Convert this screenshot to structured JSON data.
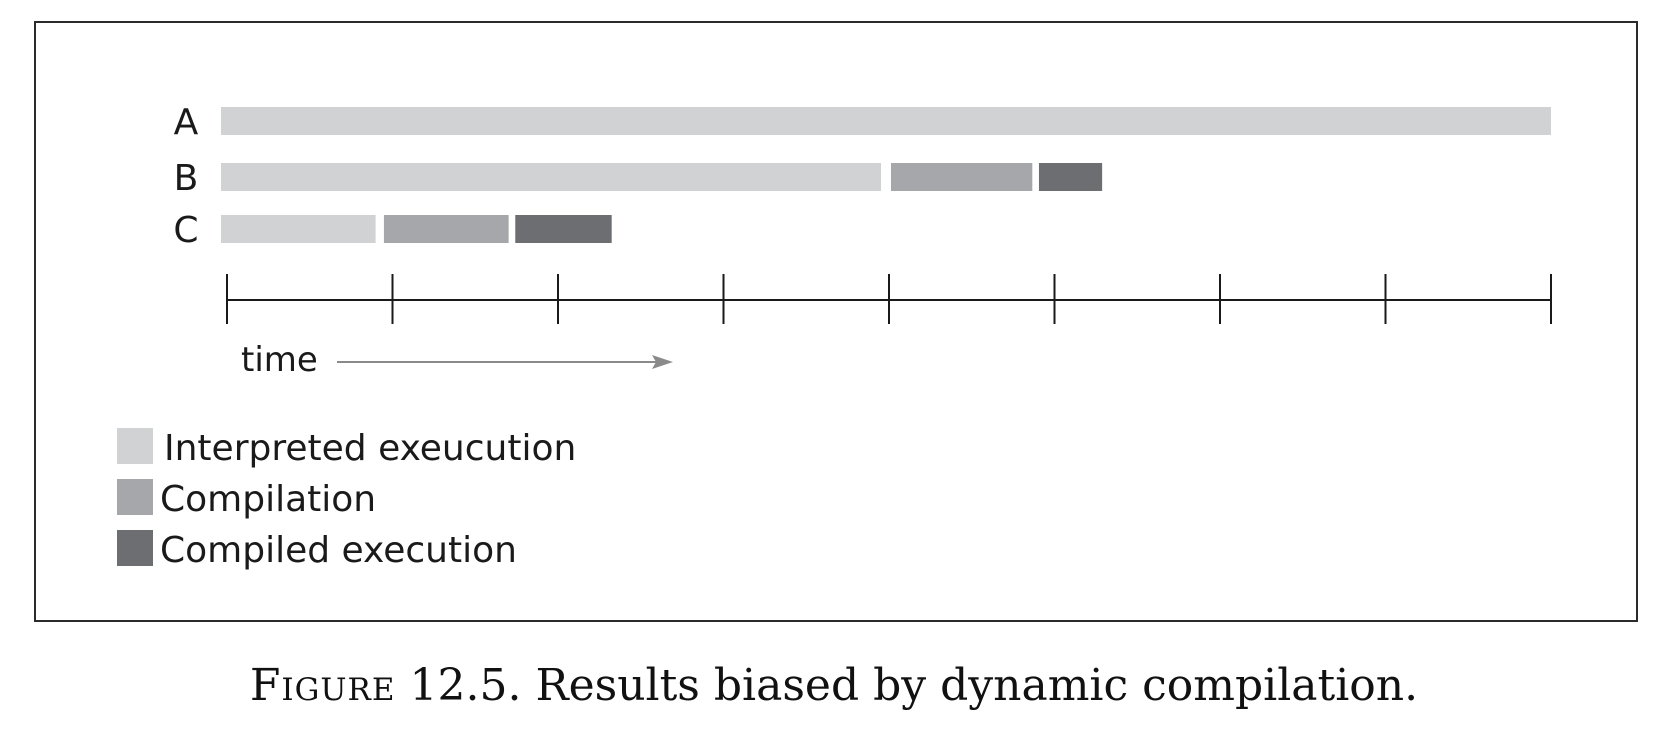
{
  "diagram": {
    "rows": [
      {
        "label": "A",
        "segments": [
          {
            "kind": "interpreted",
            "start": 0,
            "end": 8
          }
        ]
      },
      {
        "label": "B",
        "segments": [
          {
            "kind": "interpreted",
            "start": 0,
            "end": 3.97
          },
          {
            "kind": "compilation",
            "start": 4.03,
            "end": 4.88
          },
          {
            "kind": "compiled",
            "start": 4.92,
            "end": 5.3
          }
        ]
      },
      {
        "label": "C",
        "segments": [
          {
            "kind": "interpreted",
            "start": 0,
            "end": 0.93
          },
          {
            "kind": "compilation",
            "start": 0.98,
            "end": 1.73
          },
          {
            "kind": "compiled",
            "start": 1.77,
            "end": 2.35
          }
        ]
      }
    ],
    "axis": {
      "label": "time",
      "tick_count": 9
    },
    "legend": [
      {
        "kind": "interpreted",
        "text": "Interpreted exeucution",
        "color": "#d1d2d4"
      },
      {
        "kind": "compilation",
        "text": "Compilation",
        "color": "#a6a7aa"
      },
      {
        "kind": "compiled",
        "text": "Compiled execution",
        "color": "#6d6e71"
      }
    ],
    "colors": {
      "interpreted": "#d1d2d4",
      "compilation": "#a6a7aa",
      "compiled": "#6d6e71",
      "axis": "#1a1a1a",
      "arrow": "#8a8a8a"
    }
  },
  "caption": {
    "figure_word": "Figure",
    "text": " 12.5. Results biased by dynamic compilation."
  }
}
